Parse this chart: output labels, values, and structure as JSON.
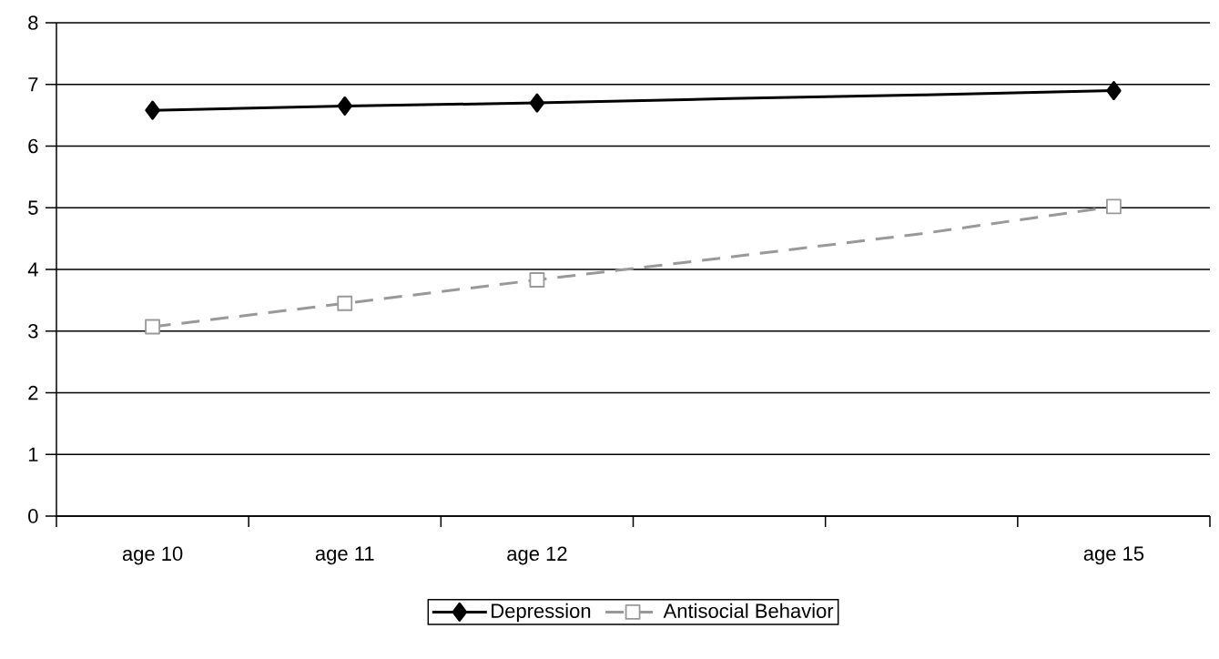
{
  "chart_data": {
    "type": "line",
    "categories": [
      "age 10",
      "age 11",
      "age 12",
      null,
      null,
      "age 15"
    ],
    "series": [
      {
        "name": "Depression",
        "color": "#000000",
        "marker": "diamond",
        "line_style": "solid",
        "values": [
          6.58,
          6.65,
          6.7,
          6.77,
          6.83,
          6.9
        ]
      },
      {
        "name": "Antisocial Behavior",
        "color": "#999999",
        "marker": "square",
        "line_style": "dashed",
        "values": [
          3.07,
          3.45,
          3.83,
          4.2,
          4.58,
          5.02
        ]
      }
    ],
    "ylim": [
      0,
      8
    ],
    "yticks": [
      0,
      1,
      2,
      3,
      4,
      5,
      6,
      7,
      8
    ],
    "grid": "y",
    "legend": "bottom"
  }
}
